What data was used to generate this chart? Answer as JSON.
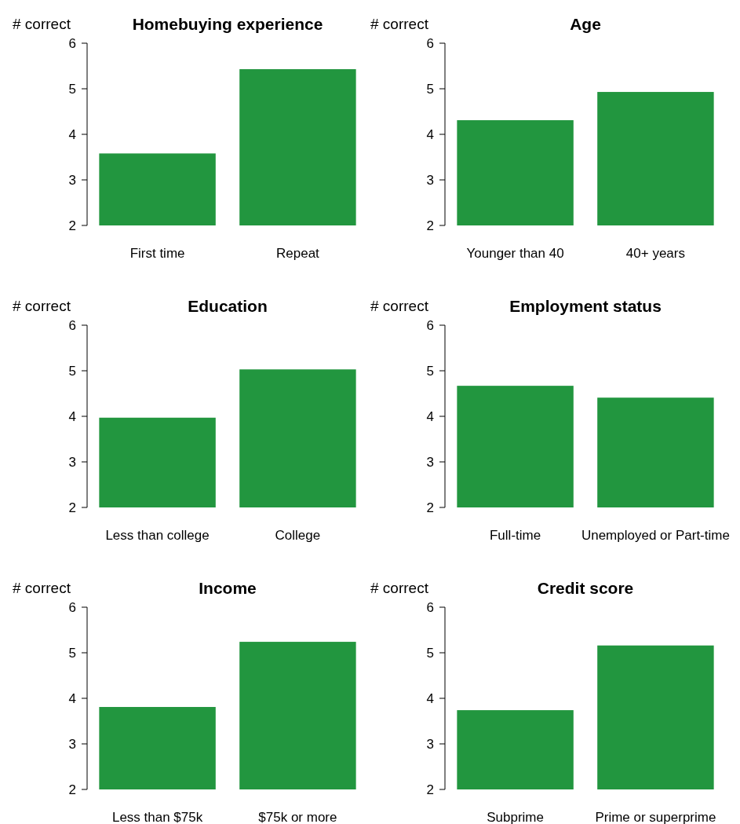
{
  "chart_data": [
    {
      "type": "bar",
      "title": "Homebuying experience",
      "ylabel": "# correct",
      "categories": [
        "First time",
        "Repeat"
      ],
      "values": [
        3.58,
        5.43
      ],
      "color": "#22963f",
      "ylim": [
        2,
        6
      ],
      "yticks": [
        2,
        3,
        4,
        5,
        6
      ],
      "grid": false
    },
    {
      "type": "bar",
      "title": "Age",
      "ylabel": "# correct",
      "categories": [
        "Younger than 40",
        "40+ years"
      ],
      "values": [
        4.31,
        4.93
      ],
      "color": "#22963f",
      "ylim": [
        2,
        6
      ],
      "yticks": [
        2,
        3,
        4,
        5,
        6
      ],
      "grid": false
    },
    {
      "type": "bar",
      "title": "Education",
      "ylabel": "# correct",
      "categories": [
        "Less than college",
        "College"
      ],
      "values": [
        3.97,
        5.03
      ],
      "color": "#22963f",
      "ylim": [
        2,
        6
      ],
      "yticks": [
        2,
        3,
        4,
        5,
        6
      ],
      "grid": false
    },
    {
      "type": "bar",
      "title": "Employment status",
      "ylabel": "# correct",
      "categories": [
        "Full-time",
        "Unemployed or Part-time"
      ],
      "values": [
        4.67,
        4.41
      ],
      "color": "#22963f",
      "ylim": [
        2,
        6
      ],
      "yticks": [
        2,
        3,
        4,
        5,
        6
      ],
      "grid": false
    },
    {
      "type": "bar",
      "title": "Income",
      "ylabel": "# correct",
      "categories": [
        "Less than $75k",
        "$75k or more"
      ],
      "values": [
        3.81,
        5.24
      ],
      "color": "#22963f",
      "ylim": [
        2,
        6
      ],
      "yticks": [
        2,
        3,
        4,
        5,
        6
      ],
      "grid": false
    },
    {
      "type": "bar",
      "title": "Credit score",
      "ylabel": "# correct",
      "categories": [
        "Subprime",
        "Prime or superprime"
      ],
      "values": [
        3.74,
        5.16
      ],
      "color": "#22963f",
      "ylim": [
        2,
        6
      ],
      "yticks": [
        2,
        3,
        4,
        5,
        6
      ],
      "grid": false
    }
  ]
}
